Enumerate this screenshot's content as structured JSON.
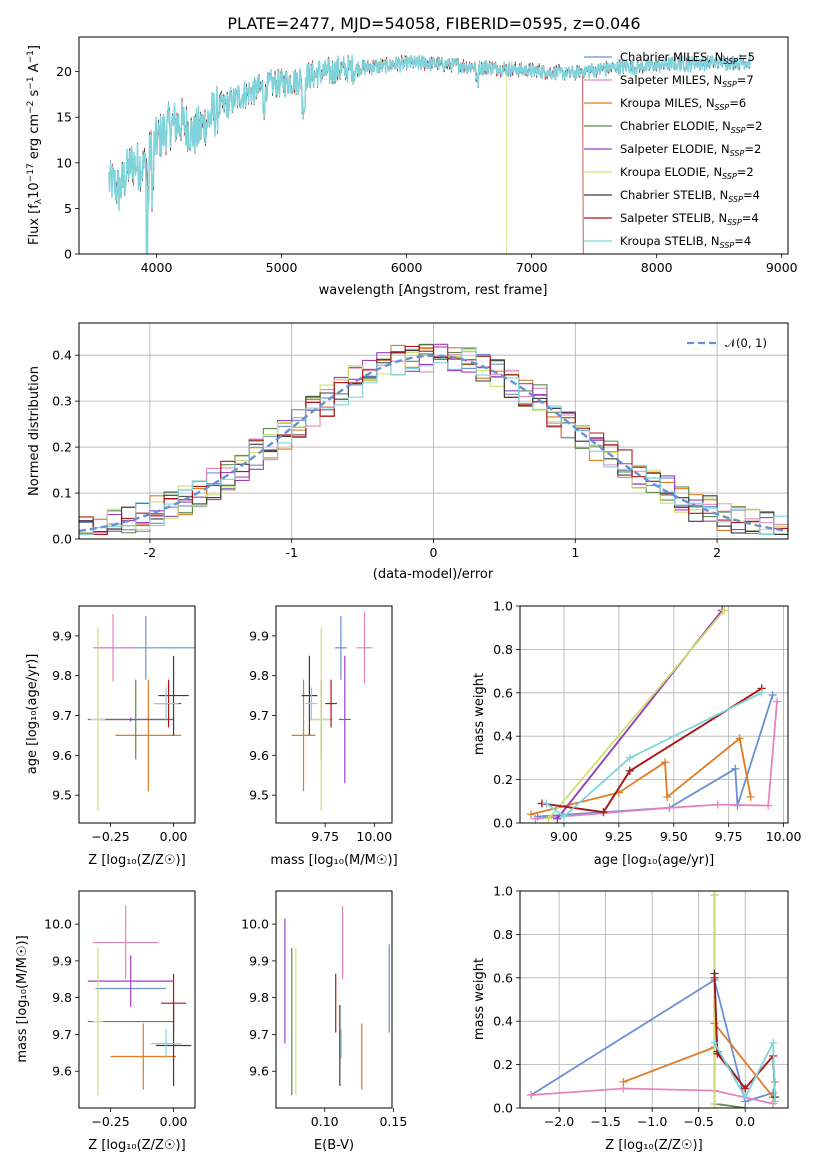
{
  "title": "PLATE=2477, MJD=54058, FIBERID=0595, z=0.046",
  "colors": {
    "Chabrier MILES": "#6a8fd4",
    "Salpeter MILES": "#e684c0",
    "Kroupa MILES": "#e07b24",
    "Chabrier ELODIE": "#5f8a52",
    "Salpeter ELODIE": "#9b40c0",
    "Kroupa ELODIE": "#cfe070",
    "Chabrier STELIB": "#3d3d3d",
    "Salpeter STELIB": "#b01818",
    "Kroupa STELIB": "#7fd4dc"
  },
  "chart_data": [
    {
      "id": "spectrum",
      "type": "line",
      "xlabel": "wavelength [Angstrom, rest frame]",
      "ylabel_main": "Flux [f",
      "ylabel_sub1": "λ",
      "ylabel_mid": "10",
      "ylabel_sup1": "−17",
      "ylabel_tail": " erg cm",
      "ylabel_sup2": "−2",
      "ylabel_s": " s",
      "ylabel_sup3": "−1",
      "ylabel_a": " A",
      "ylabel_sup4": "−1",
      "ylabel_end": "]",
      "xlim": [
        3380,
        9050
      ],
      "ylim": [
        0,
        23.8
      ],
      "xticks": [
        4000,
        5000,
        6000,
        7000,
        8000,
        9000
      ],
      "yticks": [
        0,
        5,
        10,
        15,
        20
      ],
      "grid": false,
      "legend_position": "top-right",
      "legend": [
        {
          "name": "Chabrier MILES",
          "nssp": "5"
        },
        {
          "name": "Salpeter MILES",
          "nssp": "7"
        },
        {
          "name": "Kroupa MILES",
          "nssp": "6"
        },
        {
          "name": "Chabrier ELODIE",
          "nssp": "2"
        },
        {
          "name": "Salpeter ELODIE",
          "nssp": "2"
        },
        {
          "name": "Kroupa ELODIE",
          "nssp": "2"
        },
        {
          "name": "Chabrier STELIB",
          "nssp": "4"
        },
        {
          "name": "Salpeter STELIB",
          "nssp": "4"
        },
        {
          "name": "Kroupa STELIB",
          "nssp": "4"
        }
      ],
      "data_envelope": {
        "x": [
          3620,
          3700,
          3800,
          3900,
          4000,
          4100,
          4200,
          4300,
          4500,
          4700,
          4900,
          5100,
          5300,
          5500,
          5700,
          5900,
          6100,
          6300,
          6500,
          6700,
          6900,
          7100,
          7300,
          7500,
          7700,
          7900,
          8100,
          8300,
          8500,
          8750
        ],
        "y": [
          8.0,
          7.0,
          10.0,
          9.5,
          12.5,
          14.0,
          14.5,
          13.0,
          16.0,
          17.5,
          18.5,
          19.0,
          19.8,
          20.2,
          20.5,
          20.8,
          21.0,
          20.8,
          20.6,
          20.4,
          20.2,
          20.0,
          19.8,
          20.2,
          20.5,
          20.6,
          20.8,
          20.9,
          21.0,
          21.1
        ]
      },
      "dropouts": [
        {
          "model": "Kroupa ELODIE",
          "start": 3920,
          "end": 3920
        },
        {
          "model": "Kroupa ELODIE",
          "start": 6800,
          "end": 9050
        },
        {
          "model": "Salpeter STELIB",
          "start": 7410,
          "end": 9050
        },
        {
          "model": "Kroupa STELIB",
          "start": 3925,
          "end": 3925
        }
      ]
    },
    {
      "id": "residuals",
      "type": "histogram",
      "xlabel": "(data-model)/error",
      "ylabel": "Normed distribution",
      "xlim": [
        -2.5,
        2.5
      ],
      "ylim": [
        0,
        0.47
      ],
      "xticks": [
        -2,
        -1,
        0,
        1,
        2
      ],
      "yticks": [
        0.0,
        0.1,
        0.2,
        0.3,
        0.4
      ],
      "grid": true,
      "legend_position": "top-right",
      "legend_label": "𝒩(0, 1)",
      "bin_edges_start": -2.5,
      "bin_width": 0.1,
      "reference_curve": "gaussian N(0,1), mean 0, sigma 1"
    },
    {
      "id": "age_vs_Z",
      "type": "errorbar",
      "xlabel": "Z [log₁₀(Z/Z☉)]",
      "ylabel": "age  [log₁₀(age/yr)]",
      "xlim": [
        -0.375,
        0.085
      ],
      "ylim": [
        9.43,
        9.975
      ],
      "xticks": [
        -0.25,
        0.0
      ],
      "xticklabels": [
        "−0.25",
        "0.00"
      ],
      "yticks": [
        9.5,
        9.6,
        9.7,
        9.8,
        9.9
      ],
      "points": [
        {
          "model": "Chabrier MILES",
          "x": -0.11,
          "xerr": 0.2,
          "y": 9.87,
          "yerr": 0.08
        },
        {
          "model": "Salpeter MILES",
          "x": -0.24,
          "xerr": 0.08,
          "y": 9.87,
          "yerr": 0.085
        },
        {
          "model": "Kroupa MILES",
          "x": -0.1,
          "xerr": 0.13,
          "y": 9.65,
          "yerr": 0.14
        },
        {
          "model": "Chabrier ELODIE",
          "x": -0.15,
          "xerr": 0.14,
          "y": 9.69,
          "yerr": 0.1
        },
        {
          "model": "Salpeter ELODIE",
          "x": -0.17,
          "xerr": 0.17,
          "y": 9.69,
          "yerr": 0.005
        },
        {
          "model": "Kroupa ELODIE",
          "x": -0.3,
          "xerr": 0.03,
          "y": 9.69,
          "yerr": 0.23
        },
        {
          "model": "Chabrier STELIB",
          "x": 0.0,
          "xerr": 0.06,
          "y": 9.75,
          "yerr": 0.1
        },
        {
          "model": "Salpeter STELIB",
          "x": -0.02,
          "xerr": 0.05,
          "y": 9.73,
          "yerr": 0.06
        },
        {
          "model": "Kroupa STELIB",
          "x": -0.03,
          "xerr": 0.05,
          "y": 9.73,
          "yerr": 0.04
        }
      ]
    },
    {
      "id": "age_vs_mass",
      "type": "errorbar",
      "xlabel": "mass [log₁₀(M/M☉)]",
      "ylabel": "",
      "xlim": [
        9.5,
        10.09
      ],
      "ylim": [
        9.43,
        9.975
      ],
      "xticks": [
        9.75,
        10.0
      ],
      "xticklabels": [
        "9.75",
        "10.00"
      ],
      "yticks": [
        9.5,
        9.6,
        9.7,
        9.8,
        9.9
      ],
      "points": [
        {
          "model": "Chabrier MILES",
          "x": 9.83,
          "xerr": 0.03,
          "y": 9.87,
          "yerr": 0.08
        },
        {
          "model": "Salpeter MILES",
          "x": 9.95,
          "xerr": 0.04,
          "y": 9.87,
          "yerr": 0.09
        },
        {
          "model": "Kroupa MILES",
          "x": 9.64,
          "xerr": 0.06,
          "y": 9.65,
          "yerr": 0.14
        },
        {
          "model": "Chabrier ELODIE",
          "x": 9.73,
          "xerr": 0.06,
          "y": 9.69,
          "yerr": 0.1
        },
        {
          "model": "Salpeter ELODIE",
          "x": 9.85,
          "xerr": 0.03,
          "y": 9.69,
          "yerr": 0.16
        },
        {
          "model": "Kroupa ELODIE",
          "x": 9.73,
          "xerr": 0.06,
          "y": 9.69,
          "yerr": 0.23
        },
        {
          "model": "Chabrier STELIB",
          "x": 9.67,
          "xerr": 0.04,
          "y": 9.75,
          "yerr": 0.1
        },
        {
          "model": "Salpeter STELIB",
          "x": 9.78,
          "xerr": 0.03,
          "y": 9.73,
          "yerr": 0.06
        },
        {
          "model": "Kroupa STELIB",
          "x": 9.68,
          "xerr": 0.03,
          "y": 9.73,
          "yerr": 0.04
        }
      ]
    },
    {
      "id": "weight_vs_age",
      "type": "line",
      "xlabel": "age  [log₁₀(age/yr)]",
      "ylabel": "mass weight",
      "xlim": [
        8.8,
        10.02
      ],
      "ylim": [
        0,
        1.0
      ],
      "xticks": [
        9.0,
        9.25,
        9.5,
        9.75,
        10.0
      ],
      "xticklabels": [
        "9.00",
        "9.25",
        "9.50",
        "9.75",
        "10.00"
      ],
      "yticks": [
        0.0,
        0.2,
        0.4,
        0.6,
        0.8,
        1.0
      ],
      "grid": true,
      "series": [
        {
          "model": "Chabrier MILES",
          "x": [
            8.88,
            9.48,
            9.78,
            9.79,
            9.95
          ],
          "y": [
            0.03,
            0.07,
            0.25,
            0.08,
            0.59
          ]
        },
        {
          "model": "Salpeter MILES",
          "x": [
            8.87,
            9.48,
            9.7,
            9.93,
            9.97
          ],
          "y": [
            0.02,
            0.07,
            0.085,
            0.08,
            0.56
          ]
        },
        {
          "model": "Kroupa MILES",
          "x": [
            8.85,
            9.25,
            9.46,
            9.47,
            9.8,
            9.85
          ],
          "y": [
            0.04,
            0.14,
            0.28,
            0.12,
            0.39,
            0.12
          ]
        },
        {
          "model": "Chabrier ELODIE",
          "x": [
            8.97,
            9.72
          ],
          "y": [
            0.02,
            0.98
          ]
        },
        {
          "model": "Salpeter ELODIE",
          "x": [
            8.97,
            9.72
          ],
          "y": [
            0.02,
            0.98
          ]
        },
        {
          "model": "Kroupa ELODIE",
          "x": [
            8.93,
            9.73
          ],
          "y": [
            0.02,
            0.98
          ]
        },
        {
          "model": "Chabrier STELIB",
          "x": [
            8.9,
            9.18,
            9.3,
            9.9
          ],
          "y": [
            0.09,
            0.05,
            0.24,
            0.62
          ]
        },
        {
          "model": "Salpeter STELIB",
          "x": [
            8.9,
            9.18,
            9.3,
            9.9
          ],
          "y": [
            0.09,
            0.05,
            0.24,
            0.62
          ]
        },
        {
          "model": "Kroupa STELIB",
          "x": [
            8.92,
            9.0,
            9.3,
            9.9
          ],
          "y": [
            0.09,
            0.03,
            0.3,
            0.6
          ]
        }
      ]
    },
    {
      "id": "mass_vs_Z",
      "type": "errorbar",
      "xlabel": "Z [log₁₀(Z/Z☉)]",
      "ylabel": "mass [log₁₀(M/M☉)]",
      "xlim": [
        -0.375,
        0.085
      ],
      "ylim": [
        9.5,
        10.09
      ],
      "xticks": [
        -0.25,
        0.0
      ],
      "xticklabels": [
        "−0.25",
        "0.00"
      ],
      "yticks": [
        9.6,
        9.7,
        9.8,
        9.9,
        10.0
      ],
      "points": [
        {
          "model": "Chabrier MILES",
          "x": -0.17,
          "xerr": 0.14,
          "y": 9.825,
          "yerr": 0.0
        },
        {
          "model": "Salpeter MILES",
          "x": -0.19,
          "xerr": 0.13,
          "y": 9.95,
          "yerr": 0.1
        },
        {
          "model": "Kroupa MILES",
          "x": -0.12,
          "xerr": 0.13,
          "y": 9.64,
          "yerr": 0.09
        },
        {
          "model": "Chabrier ELODIE",
          "x": -0.17,
          "xerr": 0.17,
          "y": 9.735,
          "yerr": 0.0
        },
        {
          "model": "Salpeter ELODIE",
          "x": -0.17,
          "xerr": 0.17,
          "y": 9.845,
          "yerr": 0.07
        },
        {
          "model": "Kroupa ELODIE",
          "x": -0.3,
          "xerr": 0.02,
          "y": 9.735,
          "yerr": 0.2
        },
        {
          "model": "Chabrier STELIB",
          "x": 0.0,
          "xerr": 0.07,
          "y": 9.67,
          "yerr": 0.11
        },
        {
          "model": "Salpeter STELIB",
          "x": -0.0,
          "xerr": 0.05,
          "y": 9.785,
          "yerr": 0.08
        },
        {
          "model": "Kroupa STELIB",
          "x": -0.03,
          "xerr": 0.06,
          "y": 9.675,
          "yerr": 0.04
        }
      ]
    },
    {
      "id": "mass_vs_ebv",
      "type": "errorbar",
      "xlabel": "E(B-V)",
      "ylabel": "",
      "xlim": [
        0.0645,
        0.149
      ],
      "ylim": [
        9.5,
        10.09
      ],
      "xticks": [
        0.1,
        0.15
      ],
      "xticklabels": [
        "0.10",
        "0.15"
      ],
      "yticks": [
        9.6,
        9.7,
        9.8,
        9.9,
        10.0
      ],
      "points": [
        {
          "model": "Chabrier MILES",
          "x": 0.147,
          "xerr": 0.0,
          "y": 9.825,
          "yerr": 0.12
        },
        {
          "model": "Salpeter MILES",
          "x": 0.113,
          "xerr": 0.0,
          "y": 9.95,
          "yerr": 0.1
        },
        {
          "model": "Kroupa MILES",
          "x": 0.127,
          "xerr": 0.0,
          "y": 9.64,
          "yerr": 0.09
        },
        {
          "model": "Chabrier ELODIE",
          "x": 0.076,
          "xerr": 0.0,
          "y": 9.735,
          "yerr": 0.2
        },
        {
          "model": "Salpeter ELODIE",
          "x": 0.071,
          "xerr": 0.0,
          "y": 9.845,
          "yerr": 0.17
        },
        {
          "model": "Kroupa ELODIE",
          "x": 0.079,
          "xerr": 0.0,
          "y": 9.735,
          "yerr": 0.2
        },
        {
          "model": "Chabrier STELIB",
          "x": 0.111,
          "xerr": 0.0,
          "y": 9.67,
          "yerr": 0.11
        },
        {
          "model": "Salpeter STELIB",
          "x": 0.108,
          "xerr": 0.0,
          "y": 9.785,
          "yerr": 0.08
        },
        {
          "model": "Kroupa STELIB",
          "x": 0.112,
          "xerr": 0.0,
          "y": 9.675,
          "yerr": 0.04
        }
      ]
    },
    {
      "id": "weight_vs_Z",
      "type": "line",
      "xlabel": "Z [log₁₀(Z/Z☉)]",
      "ylabel": "mass weight",
      "xlim": [
        -2.42,
        0.46
      ],
      "ylim": [
        0,
        1.0
      ],
      "xticks": [
        -2.0,
        -1.5,
        -1.0,
        -0.5,
        0.0
      ],
      "xticklabels": [
        "−2.0",
        "−1.5",
        "−1.0",
        "−0.5",
        "0.0"
      ],
      "yticks": [
        0.0,
        0.2,
        0.4,
        0.6,
        0.8,
        1.0
      ],
      "grid": true,
      "series": [
        {
          "model": "Chabrier MILES",
          "x": [
            -2.3,
            -0.33,
            0.0,
            0.3
          ],
          "y": [
            0.06,
            0.59,
            0.03,
            0.07
          ]
        },
        {
          "model": "Salpeter MILES",
          "x": [
            -2.3,
            -1.31,
            -0.33,
            0.3
          ],
          "y": [
            0.06,
            0.09,
            0.08,
            0.02
          ]
        },
        {
          "model": "Kroupa MILES",
          "x": [
            -1.31,
            -0.33,
            -0.33,
            0.3,
            0.32
          ],
          "y": [
            0.12,
            0.28,
            0.39,
            0.05,
            0.12
          ]
        },
        {
          "model": "Chabrier ELODIE",
          "x": [
            -0.33,
            -0.33,
            0.0
          ],
          "y": [
            0.98,
            0.02,
            0.0
          ]
        },
        {
          "model": "Salpeter ELODIE",
          "x": [
            -0.33,
            -0.33
          ],
          "y": [
            0.98,
            0.02
          ]
        },
        {
          "model": "Kroupa ELODIE",
          "x": [
            -0.33,
            -0.33
          ],
          "y": [
            0.98,
            0.02
          ]
        },
        {
          "model": "Chabrier STELIB",
          "x": [
            -0.33,
            -0.3,
            0.0,
            0.3,
            0.32
          ],
          "y": [
            0.62,
            0.26,
            0.09,
            0.24,
            0.05
          ]
        },
        {
          "model": "Salpeter STELIB",
          "x": [
            -0.33,
            -0.3,
            0.0,
            0.3
          ],
          "y": [
            0.6,
            0.25,
            0.09,
            0.24
          ]
        },
        {
          "model": "Kroupa STELIB",
          "x": [
            -0.33,
            0.0,
            0.3,
            0.32
          ],
          "y": [
            0.3,
            0.05,
            0.3,
            0.03
          ]
        }
      ]
    }
  ]
}
